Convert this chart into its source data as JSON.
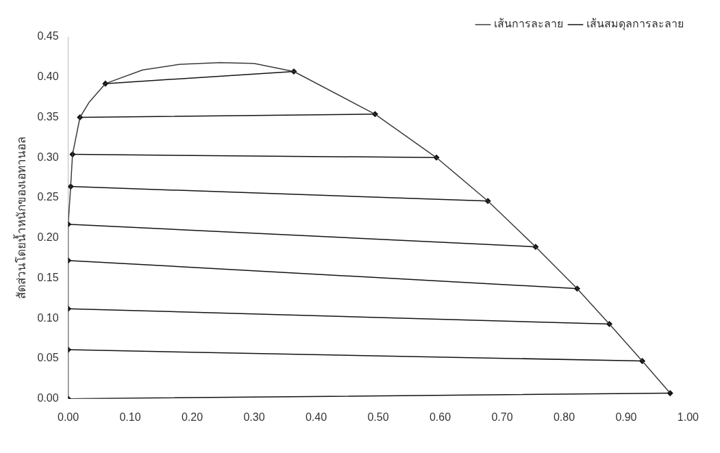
{
  "chart_data": {
    "type": "line",
    "ylabel": "สัดส่วนโดยน้ำหนักของเอทานอล",
    "xlim": [
      0,
      1.0
    ],
    "xticks": [
      {
        "value": 0,
        "label": "0.00"
      },
      {
        "value": 0.1,
        "label": "0.10"
      },
      {
        "value": 0.2,
        "label": "0.20"
      },
      {
        "value": 0.3,
        "label": "0.30"
      },
      {
        "value": 0.4,
        "label": "0.40"
      },
      {
        "value": 0.5,
        "label": "0.50"
      },
      {
        "value": 0.6,
        "label": "0.60"
      },
      {
        "value": 0.7,
        "label": "0.70"
      },
      {
        "value": 0.8,
        "label": "0.80"
      },
      {
        "value": 0.9,
        "label": "0.90"
      },
      {
        "value": 1.0,
        "label": "1.00"
      }
    ],
    "ylim": [
      0,
      0.45
    ],
    "yticks": [
      {
        "value": 0,
        "label": "0.00"
      },
      0.05,
      {
        "value": 0.1,
        "label": "0.10"
      },
      0.15,
      {
        "value": 0.2,
        "label": "0.20"
      },
      0.25,
      {
        "value": 0.3,
        "label": "0.30"
      },
      0.35,
      {
        "value": 0.4,
        "label": "0.40"
      },
      0.45
    ],
    "grid": false,
    "legend": "top right",
    "series": [
      {
        "name": "เส้นการละลาย",
        "color": "#3a3a3a",
        "marker": "none",
        "x": [
          0,
          0,
          0.004,
          0.007,
          0.019,
          0.034,
          0.06,
          0.12,
          0.18,
          0.245,
          0.3,
          0.364,
          0.495,
          0.594,
          0.677,
          0.754,
          0.821,
          0.873,
          0.926,
          0.971
        ],
        "values": [
          0,
          0.217,
          0.264,
          0.304,
          0.35,
          0.369,
          0.392,
          0.409,
          0.416,
          0.418,
          0.417,
          0.407,
          0.354,
          0.3,
          0.246,
          0.189,
          0.137,
          0.093,
          0.047,
          0.007
        ]
      },
      {
        "name": "เส้นสมดุลการละลาย",
        "color": "#111111",
        "marker": "diamond",
        "x": [
          0,
          0.971,
          null,
          0,
          0.926,
          null,
          0,
          0.873,
          null,
          0,
          0.821,
          null,
          0,
          0.754,
          null,
          0.004,
          0.677,
          null,
          0.007,
          0.594,
          null,
          0.019,
          0.495,
          null,
          0.06,
          0.364
        ],
        "values": [
          0,
          0.007,
          null,
          0.061,
          0.047,
          null,
          0.112,
          0.093,
          null,
          0.172,
          0.137,
          null,
          0.217,
          0.189,
          null,
          0.264,
          0.246,
          null,
          0.304,
          0.3,
          null,
          0.35,
          0.354,
          null,
          0.392,
          0.407
        ]
      }
    ]
  }
}
